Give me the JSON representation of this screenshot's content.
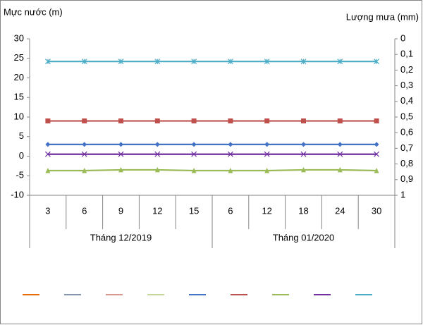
{
  "chart_data": {
    "type": "line",
    "y_label": "Mực nước (m)",
    "y2_label": "Lượng mưa (mm)",
    "categories": [
      "3",
      "6",
      "9",
      "12",
      "15",
      "6",
      "12",
      "18",
      "24",
      "30"
    ],
    "groups": [
      {
        "label": "Tháng 12/2019",
        "size": 5
      },
      {
        "label": "Tháng 01/2020",
        "size": 5
      }
    ],
    "ylim": [
      -10,
      30
    ],
    "yticks": [
      -10,
      -5,
      0,
      5,
      10,
      15,
      20,
      25,
      30
    ],
    "y2lim": [
      1,
      0
    ],
    "y2ticks": [
      0,
      {
        "value": 0.1,
        "label": "0,1"
      },
      {
        "value": 0.2,
        "label": "0,2"
      },
      {
        "value": 0.3,
        "label": "0,3"
      },
      {
        "value": 0.4,
        "label": "0,4"
      },
      {
        "value": 0.5,
        "label": "0,5"
      },
      {
        "value": 0.6,
        "label": "0,6"
      },
      {
        "value": 0.7,
        "label": "0,7"
      },
      {
        "value": 0.8,
        "label": "0,8"
      },
      {
        "value": 0.9,
        "label": "0,9"
      },
      1
    ],
    "series": [
      {
        "color": "#e46c0a",
        "axis": "y2",
        "marker": "none",
        "values": [
          null,
          null,
          null,
          null,
          null,
          null,
          null,
          null,
          null,
          null
        ]
      },
      {
        "color": "#8496b0",
        "axis": "y2",
        "marker": "none",
        "values": [
          null,
          null,
          null,
          null,
          null,
          null,
          null,
          null,
          null,
          null
        ]
      },
      {
        "color": "#d9958f",
        "axis": "y2",
        "marker": "none",
        "values": [
          null,
          null,
          null,
          null,
          null,
          null,
          null,
          null,
          null,
          null
        ]
      },
      {
        "color": "#c3d69b",
        "axis": "y2",
        "marker": "none",
        "values": [
          null,
          null,
          null,
          null,
          null,
          null,
          null,
          null,
          null,
          null
        ]
      },
      {
        "color": "#4472c4",
        "marker": "diamond",
        "values": [
          3,
          3,
          3,
          3,
          3,
          3,
          3,
          3,
          3,
          3
        ]
      },
      {
        "color": "#c0504d",
        "marker": "square",
        "values": [
          9,
          9,
          9,
          9,
          9,
          9,
          9,
          9,
          9,
          9
        ]
      },
      {
        "color": "#9bbb59",
        "marker": "triangle",
        "values": [
          -3.7,
          -3.7,
          -3.5,
          -3.5,
          -3.7,
          -3.7,
          -3.7,
          -3.5,
          -3.5,
          -3.7
        ]
      },
      {
        "color": "#7030a0",
        "marker": "x",
        "values": [
          0.5,
          0.5,
          0.5,
          0.5,
          0.5,
          0.5,
          0.5,
          0.5,
          0.5,
          0.5
        ]
      },
      {
        "color": "#4bacc6",
        "marker": "star",
        "values": [
          24.2,
          24.2,
          24.2,
          24.2,
          24.2,
          24.2,
          24.2,
          24.2,
          24.2,
          24.2
        ]
      }
    ]
  }
}
